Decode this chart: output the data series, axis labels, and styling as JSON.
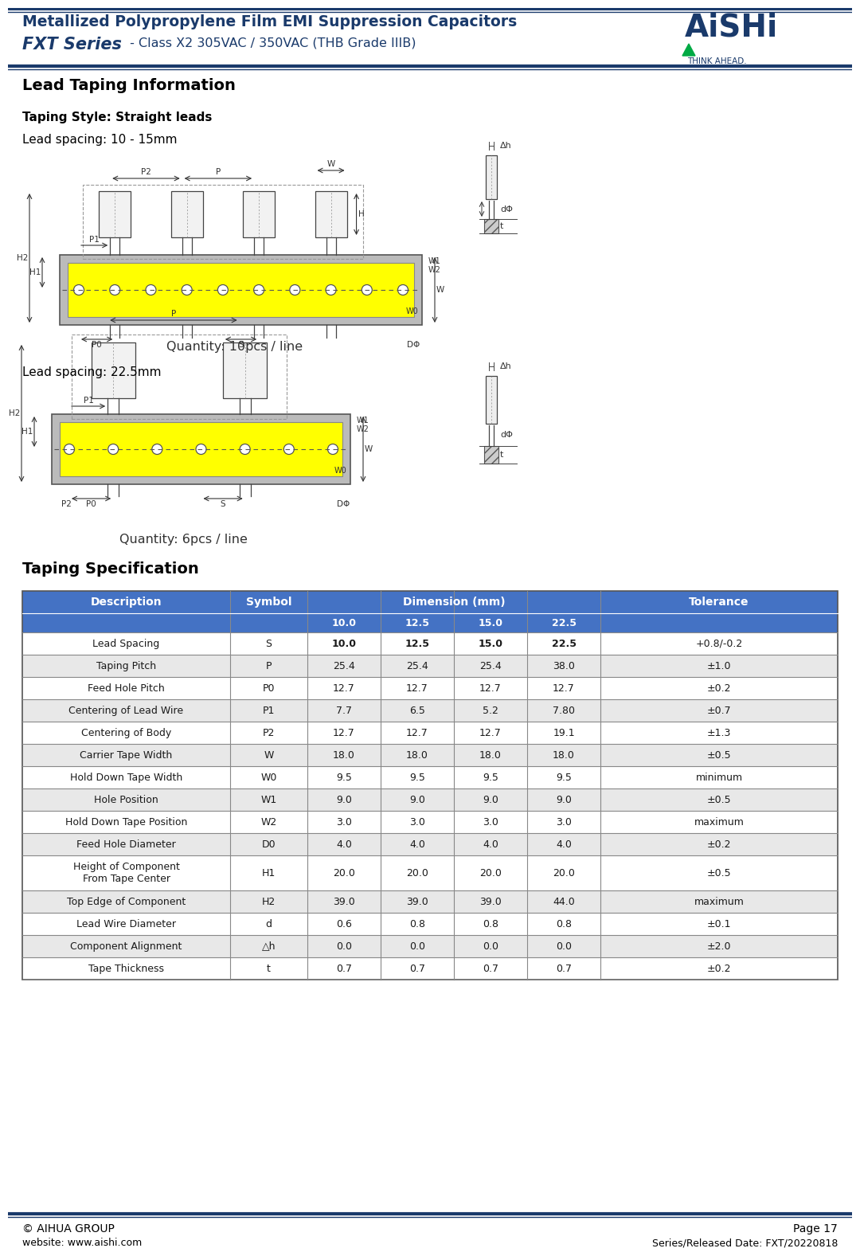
{
  "page_bg": "#ffffff",
  "header_line_color": "#1a3a6b",
  "header_title_line1": "Metallized Polypropylene Film EMI Suppression Capacitors",
  "header_title_line2_bold": "FXT Series",
  "header_title_line2_rest": " - Class X2 305VAC / 350VAC (THB Grade IIIB)",
  "section1_title": "Lead Taping Information",
  "taping_style_label": "Taping Style: Straight leads",
  "lead_spacing_1": "Lead spacing: 10 - 15mm",
  "lead_spacing_2": "Lead spacing: 22.5mm",
  "quantity_1": "Quantity: 10pcs / line",
  "quantity_2": "Quantity: 6pcs / line",
  "section2_title": "Taping Specification",
  "table_header_bg": "#4472c4",
  "table_header_text": "#ffffff",
  "table_alt_row_bg": "#e8e8e8",
  "table_row_bg": "#ffffff",
  "table_rows": [
    [
      "Lead Spacing",
      "S",
      "10.0",
      "12.5",
      "15.0",
      "22.5",
      "+0.8/-0.2"
    ],
    [
      "Taping Pitch",
      "P",
      "25.4",
      "25.4",
      "25.4",
      "38.0",
      "±1.0"
    ],
    [
      "Feed Hole Pitch",
      "P0",
      "12.7",
      "12.7",
      "12.7",
      "12.7",
      "±0.2"
    ],
    [
      "Centering of Lead Wire",
      "P1",
      "7.7",
      "6.5",
      "5.2",
      "7.80",
      "±0.7"
    ],
    [
      "Centering of Body",
      "P2",
      "12.7",
      "12.7",
      "12.7",
      "19.1",
      "±1.3"
    ],
    [
      "Carrier Tape Width",
      "W",
      "18.0",
      "18.0",
      "18.0",
      "18.0",
      "±0.5"
    ],
    [
      "Hold Down Tape Width",
      "W0",
      "9.5",
      "9.5",
      "9.5",
      "9.5",
      "minimum"
    ],
    [
      "Hole Position",
      "W1",
      "9.0",
      "9.0",
      "9.0",
      "9.0",
      "±0.5"
    ],
    [
      "Hold Down Tape Position",
      "W2",
      "3.0",
      "3.0",
      "3.0",
      "3.0",
      "maximum"
    ],
    [
      "Feed Hole Diameter",
      "D0",
      "4.0",
      "4.0",
      "4.0",
      "4.0",
      "±0.2"
    ],
    [
      "Height of Component\nFrom Tape Center",
      "H1",
      "20.0",
      "20.0",
      "20.0",
      "20.0",
      "±0.5"
    ],
    [
      "Top Edge of Component",
      "H2",
      "39.0",
      "39.0",
      "39.0",
      "44.0",
      "maximum"
    ],
    [
      "Lead Wire Diameter",
      "d",
      "0.6",
      "0.8",
      "0.8",
      "0.8",
      "±0.1"
    ],
    [
      "Component Alignment",
      "△h",
      "0.0",
      "0.0",
      "0.0",
      "0.0",
      "±2.0"
    ],
    [
      "Tape Thickness",
      "t",
      "0.7",
      "0.7",
      "0.7",
      "0.7",
      "±0.2"
    ]
  ],
  "footer_left1": "© AIHUA GROUP",
  "footer_left2": "website: www.aishi.com",
  "footer_right1": "Page 17",
  "footer_right2": "Series/Released Date: FXT/20220818",
  "tape_yellow": "#ffff00",
  "tape_gray": "#bbbbbb",
  "diagram_line": "#333333"
}
